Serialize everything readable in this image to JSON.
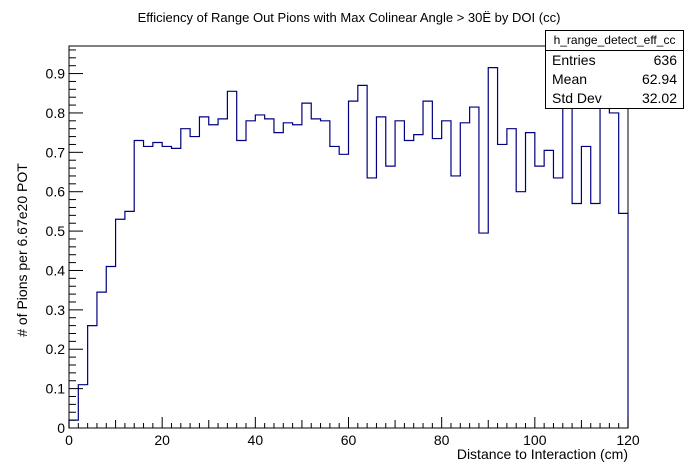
{
  "chart_data": {
    "type": "histogram-step",
    "title": "Efficiency of Range Out Pions with Max Colinear Angle > 30Ë by DOI (cc)",
    "xlabel": "Distance to Interaction (cm)",
    "ylabel": "# of Pions per 6.67e20 POT",
    "xlim": [
      0,
      120
    ],
    "ylim": [
      0,
      0.97
    ],
    "xticks": [
      0,
      20,
      40,
      60,
      80,
      100,
      120
    ],
    "yticks": [
      0,
      0.1,
      0.2,
      0.3,
      0.4,
      0.5,
      0.6,
      0.7,
      0.8,
      0.9
    ],
    "ytick_labels": [
      "0",
      "0.1",
      "0.2",
      "0.3",
      "0.4",
      "0.5",
      "0.6",
      "0.7",
      "0.8",
      "0.9"
    ],
    "bin_width": 2,
    "values": [
      0.02,
      0.11,
      0.26,
      0.345,
      0.41,
      0.53,
      0.55,
      0.73,
      0.715,
      0.725,
      0.715,
      0.71,
      0.76,
      0.74,
      0.79,
      0.77,
      0.785,
      0.855,
      0.73,
      0.78,
      0.795,
      0.785,
      0.75,
      0.775,
      0.77,
      0.825,
      0.785,
      0.78,
      0.715,
      0.695,
      0.83,
      0.87,
      0.635,
      0.79,
      0.665,
      0.78,
      0.73,
      0.745,
      0.83,
      0.735,
      0.78,
      0.64,
      0.775,
      0.815,
      0.495,
      0.915,
      0.72,
      0.76,
      0.6,
      0.75,
      0.665,
      0.705,
      0.635,
      0.87,
      0.57,
      0.715,
      0.57,
      0.87,
      0.8,
      0.545
    ],
    "line_color": "#000080"
  },
  "stats": {
    "name": "h_range_detect_eff_cc",
    "rows": [
      {
        "label": "Entries",
        "value": "636"
      },
      {
        "label": "Mean",
        "value": "62.94"
      },
      {
        "label": "Std Dev",
        "value": "32.02"
      }
    ]
  }
}
